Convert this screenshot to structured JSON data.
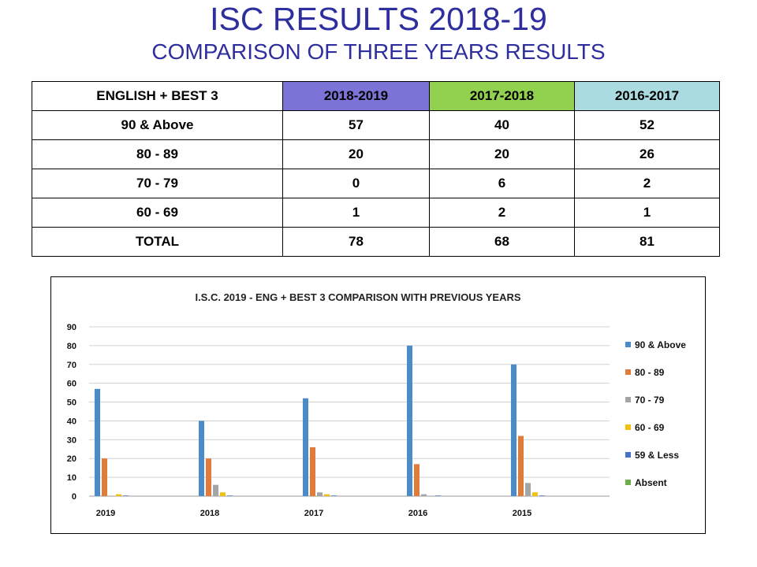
{
  "slide": {
    "title": "ISC RESULTS 2018-19",
    "subtitle": "COMPARISON OF THREE YEARS RESULTS"
  },
  "table": {
    "headers": [
      "ENGLISH + BEST 3",
      "2018-2019",
      "2017-2018",
      "2016-2017"
    ],
    "header_colors": [
      "#ffffff",
      "#7b73d6",
      "#92d050",
      "#a9dbe0"
    ],
    "rows": [
      [
        "90 & Above",
        "57",
        "40",
        "52"
      ],
      [
        "80 - 89",
        "20",
        "20",
        "26"
      ],
      [
        "70 - 79",
        "0",
        "6",
        "2"
      ],
      [
        "60 - 69",
        "1",
        "2",
        "1"
      ],
      [
        "TOTAL",
        "78",
        "68",
        "81"
      ]
    ]
  },
  "chart_data": {
    "type": "bar",
    "title": "I.S.C. 2019 - ENG + BEST 3 COMPARISON WITH PREVIOUS YEARS",
    "categories": [
      "2019",
      "2018",
      "2017",
      "2016",
      "2015"
    ],
    "ylim": [
      0,
      90
    ],
    "yticks": [
      0,
      10,
      20,
      30,
      40,
      50,
      60,
      70,
      80,
      90
    ],
    "grid": true,
    "legend_position": "right",
    "series": [
      {
        "name": "90 & Above",
        "color": "#4a8bc8",
        "values": [
          57,
          40,
          52,
          80,
          70
        ]
      },
      {
        "name": "80 - 89",
        "color": "#e07b39",
        "values": [
          20,
          20,
          26,
          17,
          32
        ]
      },
      {
        "name": "70 - 79",
        "color": "#a5a5a5",
        "values": [
          0,
          6,
          2,
          1,
          7
        ]
      },
      {
        "name": "60 - 69",
        "color": "#f2c10f",
        "values": [
          1,
          2,
          1,
          0,
          2
        ]
      },
      {
        "name": "59 & Less",
        "color": "#4472c4",
        "values": [
          0.3,
          0.3,
          0.3,
          0.3,
          0.3
        ]
      },
      {
        "name": "Absent",
        "color": "#70ad47",
        "values": [
          0,
          0,
          0,
          0,
          0
        ]
      }
    ]
  }
}
